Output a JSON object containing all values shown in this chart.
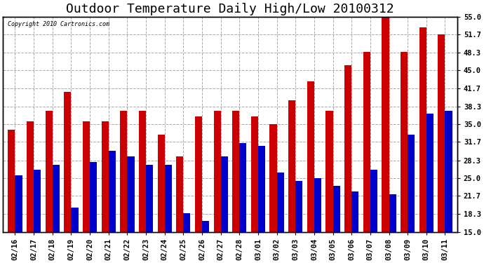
{
  "title": "Outdoor Temperature Daily High/Low 20100312",
  "copyright": "Copyright 2010 Cartronics.com",
  "ylim": [
    15.0,
    55.0
  ],
  "yticks": [
    15.0,
    18.3,
    21.7,
    25.0,
    28.3,
    31.7,
    35.0,
    38.3,
    41.7,
    45.0,
    48.3,
    51.7,
    55.0
  ],
  "dates": [
    "02/16",
    "02/17",
    "02/18",
    "02/19",
    "02/20",
    "02/21",
    "02/22",
    "02/23",
    "02/24",
    "02/25",
    "02/26",
    "02/27",
    "02/28",
    "03/01",
    "03/02",
    "03/03",
    "03/04",
    "03/05",
    "03/06",
    "03/07",
    "03/08",
    "03/09",
    "03/10",
    "03/11"
  ],
  "highs": [
    34.0,
    35.5,
    37.5,
    41.0,
    35.5,
    35.5,
    37.5,
    37.5,
    33.0,
    29.0,
    36.5,
    37.5,
    37.5,
    36.5,
    35.0,
    39.5,
    43.0,
    37.5,
    46.0,
    48.5,
    55.0,
    48.5,
    53.0,
    51.7
  ],
  "lows": [
    25.5,
    26.5,
    27.5,
    19.5,
    28.0,
    30.0,
    29.0,
    27.5,
    27.5,
    18.5,
    17.0,
    29.0,
    31.5,
    31.0,
    26.0,
    24.5,
    25.0,
    23.5,
    22.5,
    26.5,
    22.0,
    33.0,
    37.0,
    37.5
  ],
  "high_color": "#cc0000",
  "low_color": "#0000cc",
  "bg_color": "#ffffff",
  "grid_color": "#aaaaaa",
  "bar_width": 0.38,
  "title_fontsize": 13,
  "tick_fontsize": 7.5
}
